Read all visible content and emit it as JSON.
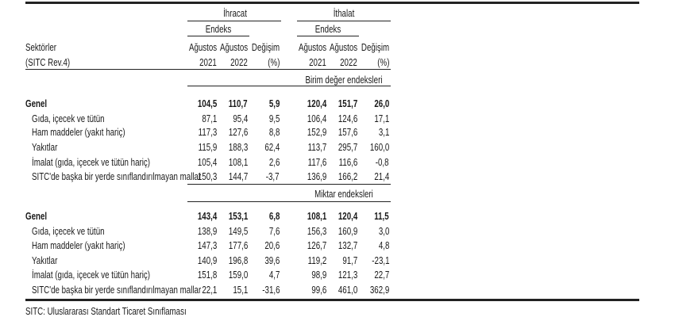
{
  "header": {
    "sector_label": "Sektörler",
    "sector_sub": "(SITC Rev.4)",
    "export": "İhracat",
    "import": "İthalat",
    "index": "Endeks",
    "month": "Ağustos",
    "year1": "2021",
    "year2": "2022",
    "change": "Değişim",
    "pct": "(%)"
  },
  "sections": [
    {
      "title": "Birim değer endeksleri",
      "rows": [
        {
          "label": "Genel",
          "bold": true,
          "values": [
            "104,5",
            "110,7",
            "5,9",
            "120,4",
            "151,7",
            "26,0"
          ]
        },
        {
          "label": "Gıda, içecek ve tütün",
          "values": [
            "87,1",
            "95,4",
            "9,5",
            "106,4",
            "124,6",
            "17,1"
          ]
        },
        {
          "label": "Ham maddeler (yakıt hariç)",
          "values": [
            "117,3",
            "127,6",
            "8,8",
            "152,9",
            "157,6",
            "3,1"
          ]
        },
        {
          "label": "Yakıtlar",
          "values": [
            "115,9",
            "188,3",
            "62,4",
            "113,7",
            "295,7",
            "160,0"
          ]
        },
        {
          "label": "İmalat (gıda, içecek ve tütün hariç)",
          "values": [
            "105,4",
            "108,1",
            "2,6",
            "117,6",
            "116,6",
            "-0,8"
          ]
        },
        {
          "label": "SITC'de başka bir yerde sınıflandırılmayan mallar",
          "values": [
            "150,3",
            "144,7",
            "-3,7",
            "136,9",
            "166,2",
            "21,4"
          ]
        }
      ]
    },
    {
      "title": "Miktar endeksleri",
      "rows": [
        {
          "label": "Genel",
          "bold": true,
          "values": [
            "143,4",
            "153,1",
            "6,8",
            "108,1",
            "120,4",
            "11,5"
          ]
        },
        {
          "label": "Gıda, içecek ve tütün",
          "values": [
            "138,9",
            "149,5",
            "7,6",
            "156,3",
            "160,9",
            "3,0"
          ]
        },
        {
          "label": "Ham maddeler (yakıt hariç)",
          "values": [
            "147,3",
            "177,6",
            "20,6",
            "126,7",
            "132,7",
            "4,8"
          ]
        },
        {
          "label": "Yakıtlar",
          "values": [
            "140,9",
            "196,8",
            "39,6",
            "119,2",
            "91,7",
            "-23,1"
          ]
        },
        {
          "label": "İmalat (gıda, içecek ve tütün hariç)",
          "values": [
            "151,8",
            "159,0",
            "4,7",
            "98,9",
            "121,3",
            "22,7"
          ]
        },
        {
          "label": "SITC'de başka bir yerde sınıflandırılmayan mallar",
          "values": [
            "22,1",
            "15,1",
            "-31,6",
            "99,6",
            "461,0",
            "362,9"
          ]
        }
      ]
    }
  ],
  "footnote": "SITC: Uluslararası Standart Ticaret Sınıflaması"
}
